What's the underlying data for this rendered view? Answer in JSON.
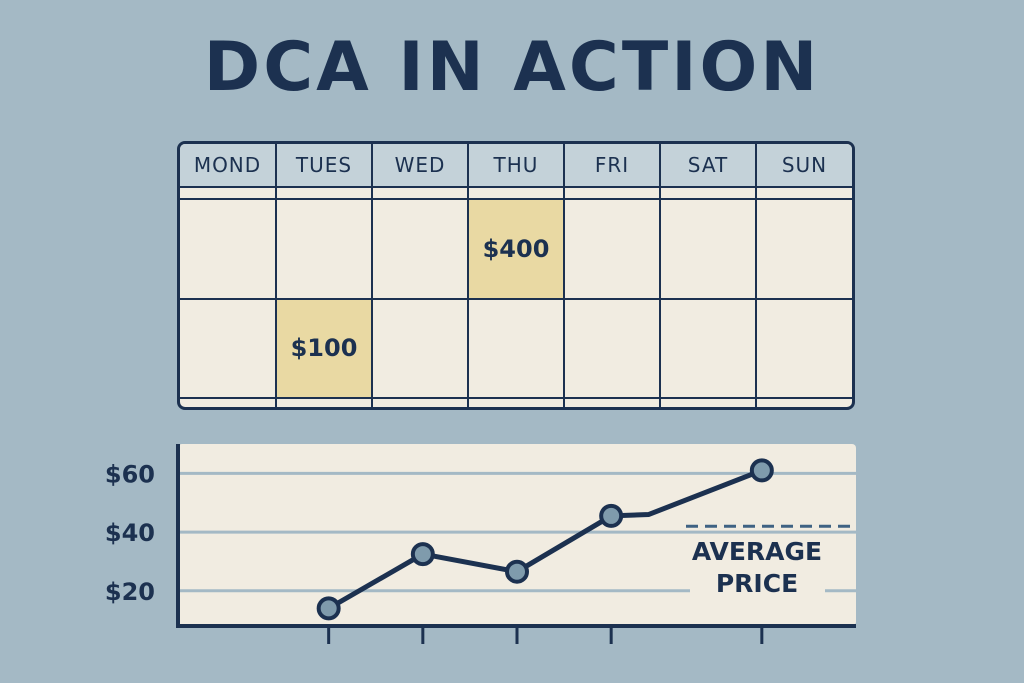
{
  "title": "DCA IN ACTION",
  "calendar": {
    "days": [
      "MOND",
      "TUES",
      "WED",
      "THU",
      "FRI",
      "SAT",
      "SUN"
    ],
    "rows": 4,
    "entries": [
      {
        "row": 1,
        "col": 3,
        "label": "$400"
      },
      {
        "row": 2,
        "col": 1,
        "label": "$100"
      }
    ]
  },
  "colors": {
    "background": "#a4b9c5",
    "ink": "#1c3150",
    "paper": "#f1ece1",
    "highlight": "#e9d9a3",
    "marker": "#7f9bac"
  },
  "chart_data": {
    "type": "line",
    "ytick_labels": [
      "$20",
      "$40",
      "$60"
    ],
    "yticks": [
      20,
      40,
      60
    ],
    "ylim": [
      8,
      70
    ],
    "x": [
      1,
      2,
      3,
      4,
      4.4,
      5.6
    ],
    "xticks": [
      1,
      2,
      3,
      4,
      5.6
    ],
    "values": [
      14,
      32.5,
      26.5,
      45.5,
      46,
      61
    ],
    "markers": [
      true,
      true,
      true,
      true,
      false,
      true
    ],
    "xlim": [
      -0.6,
      6.6
    ],
    "average_price": 42,
    "average_label": [
      "AVERAGE",
      "PRICE"
    ],
    "grid": true
  }
}
